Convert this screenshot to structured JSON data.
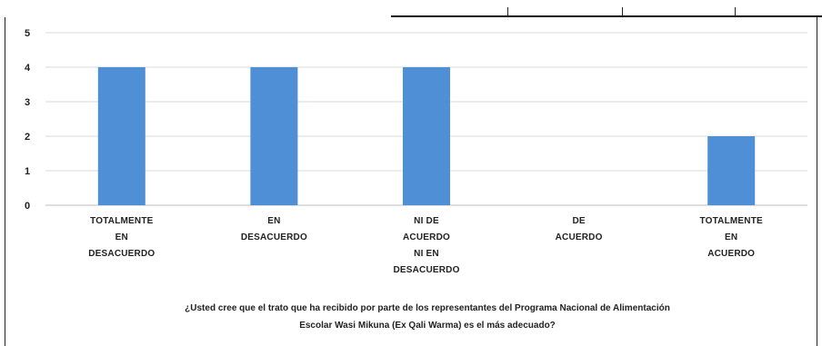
{
  "chart_data": {
    "type": "bar",
    "categories": [
      [
        "TOTALMENTE",
        "EN",
        "DESACUERDO"
      ],
      [
        "EN",
        "DESACUERDO"
      ],
      [
        "NI DE",
        "ACUERDO",
        "NI EN",
        "DESACUERDO"
      ],
      [
        "DE",
        "ACUERDO"
      ],
      [
        "TOTALMENTE",
        "EN",
        "ACUERDO"
      ]
    ],
    "values": [
      4,
      4,
      4,
      0,
      2
    ],
    "ylim": [
      0,
      5
    ],
    "yticks": [
      "0",
      "1",
      "2",
      "3",
      "4",
      "5"
    ],
    "grid": true,
    "bar_color": "#4f8fd6",
    "caption_lines": [
      "¿Usted cree que el trato que ha recibido por parte de los representantes del Programa Nacional de Alimentación",
      "Escolar Wasi Mikuna (Ex Qali Warma) es el más adecuado?"
    ]
  }
}
